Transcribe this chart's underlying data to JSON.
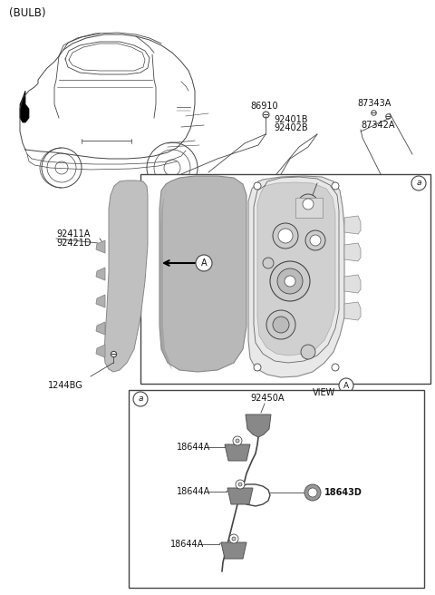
{
  "background_color": "#ffffff",
  "text_color": "#111111",
  "line_color": "#444444",
  "labels": {
    "bulb": "(BULB)",
    "86910": "86910",
    "87343A": "87343A",
    "92401B": "92401B",
    "92402B": "92402B",
    "87342A": "87342A",
    "92411A": "92411A",
    "92421D": "92421D",
    "1244BG": "1244BG",
    "view_a": "VIEW",
    "92450A": "92450A",
    "18644A_1": "18644A",
    "18644A_2": "18644A",
    "18644A_3": "18644A",
    "18643D": "18643D"
  }
}
